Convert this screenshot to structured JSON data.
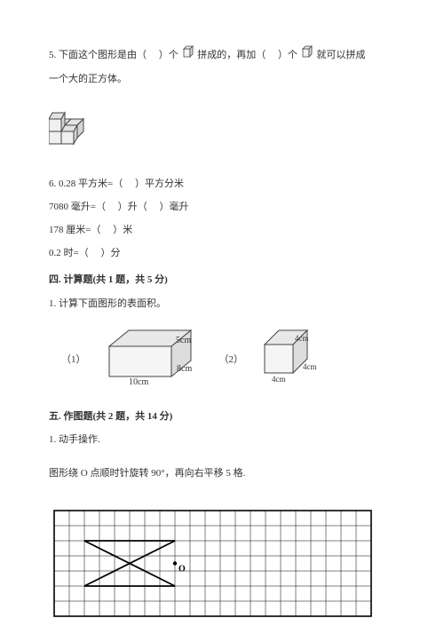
{
  "q5": {
    "prefix": "5. 下面这个图形是由（",
    "mid1": "）个",
    "mid2": "拼成的，再加（",
    "mid3": "）个",
    "suffix": "就可以拼成",
    "line2": "一个大的正方体。"
  },
  "q6": {
    "l1a": "6. 0.28 平方米=（",
    "l1b": "）平方分米",
    "l2a": "7080 毫升=（",
    "l2b": "）升（",
    "l2c": "）毫升",
    "l3a": "178 厘米=（",
    "l3b": "）米",
    "l4a": "0.2 时=（",
    "l4b": "）分"
  },
  "section4": {
    "header": "四. 计算题(共 1 题，共 5 分)",
    "q1": "1. 计算下面图形的表面积。",
    "fig1_label": "（1）",
    "fig2_label": "（2）",
    "dims1": {
      "w": "10cm",
      "d": "8cm",
      "h": "5cm"
    },
    "dims2": {
      "a": "4cm",
      "b": "4cm",
      "c": "4cm"
    }
  },
  "section5": {
    "header": "五. 作图题(共 2 题，共 14 分)",
    "q1": "1. 动手操作.",
    "instruction": "图形绕 O 点顺时针旋转 90°，再向右平移 5 格.",
    "point_label": "O"
  },
  "style": {
    "stroke": "#444444",
    "fill_light": "#f2f2f2",
    "fill_dark": "#dcdcdc",
    "grid_stroke": "#000000",
    "grid_cols": 21,
    "grid_rows": 7,
    "grid_cell": 17
  }
}
